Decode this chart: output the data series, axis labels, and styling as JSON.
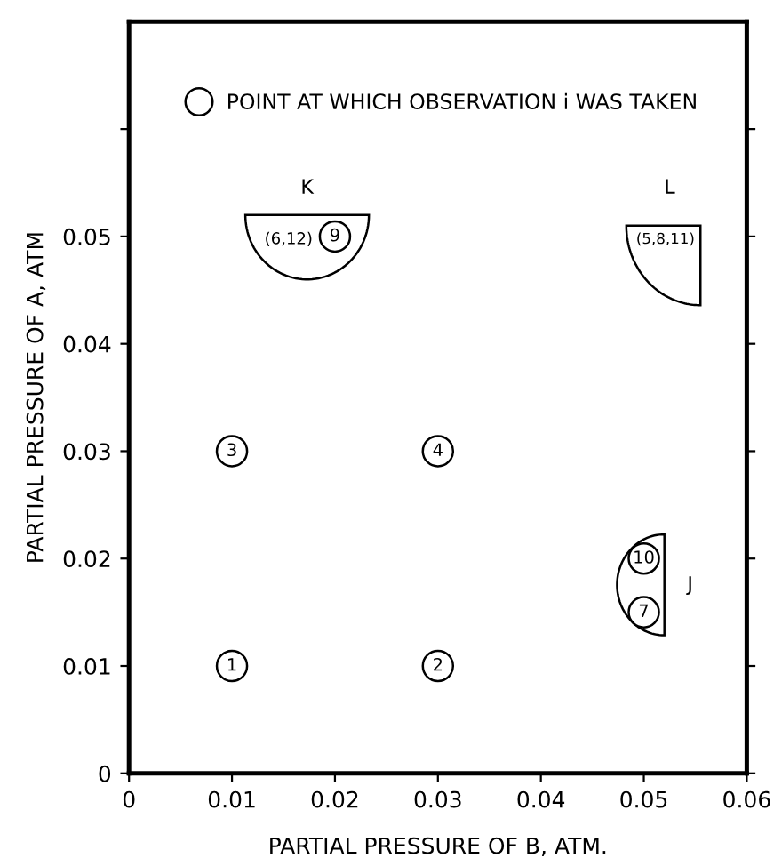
{
  "chart_data": {
    "type": "scatter",
    "xlabel": "PARTIAL PRESSURE OF B, ATM.",
    "ylabel": "PARTIAL PRESSURE OF A, ATM",
    "xlim": [
      0,
      0.06
    ],
    "xticks": [
      0,
      0.01,
      0.02,
      0.03,
      0.04,
      0.05,
      0.06
    ],
    "ylim": [
      0,
      0.07
    ],
    "yticks": [
      0,
      0.01,
      0.02,
      0.03,
      0.04,
      0.05,
      {
        "value": 0.06,
        "label": null
      }
    ],
    "grid": false,
    "legend": "top",
    "series": [
      {
        "name": "POINT AT WHICH OBSERVATION i WAS TAKEN",
        "color": "#000000",
        "marker": "circle",
        "x": [
          0.01,
          0.03,
          0.01,
          0.03,
          0.02,
          0.05,
          0.05
        ],
        "values": [
          0.01,
          0.01,
          0.03,
          0.03,
          0.05,
          0.02,
          0.015
        ]
      }
    ],
    "annotations": [
      {
        "text": "1",
        "x": 0.01,
        "y": 0.01
      },
      {
        "text": "2",
        "x": 0.03,
        "y": 0.01
      },
      {
        "text": "3",
        "x": 0.01,
        "y": 0.03
      },
      {
        "text": "4",
        "x": 0.03,
        "y": 0.03
      },
      {
        "text": "9",
        "x": 0.02,
        "y": 0.05
      },
      {
        "text": "10",
        "x": 0.05,
        "y": 0.02
      },
      {
        "text": "7",
        "x": 0.05,
        "y": 0.015
      },
      "K",
      "L",
      "J",
      "(6,12)",
      "(5,8,11)"
    ]
  }
}
